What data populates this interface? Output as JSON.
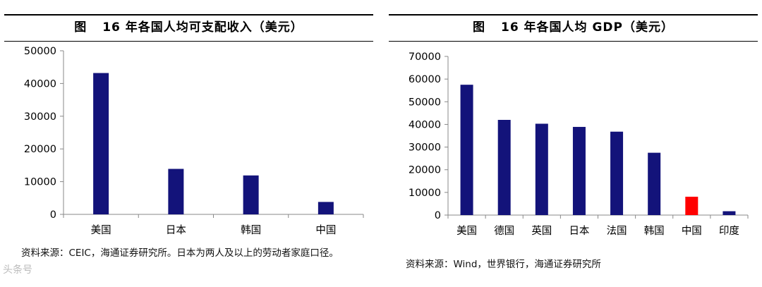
{
  "charts": [
    {
      "figure_label": "图",
      "title": "16 年各国人均可支配收入（美元）",
      "source": "资料来源：CEIC，海通证券研究所。日本为两人及以上的劳动者家庭口径。"
    },
    {
      "figure_label": "图",
      "title": "16 年各国人均 GDP（美元）",
      "source": "资料来源：Wind，世界银行，海通证券研究所"
    }
  ],
  "watermark": "头条号",
  "colors": {
    "bar": "#13137a",
    "highlight": "#ff0000",
    "axis": "#888888"
  },
  "chart_data": [
    {
      "type": "bar",
      "title": "16 年各国人均可支配收入（美元）",
      "categories": [
        "美国",
        "日本",
        "韩国",
        "中国"
      ],
      "values": [
        43200,
        13900,
        11900,
        3800
      ],
      "ylim": [
        0,
        50000
      ],
      "yticks": [
        0,
        10000,
        20000,
        30000,
        40000,
        50000
      ],
      "xlabel": "",
      "ylabel": "",
      "grid": false,
      "legend": "none",
      "highlight_index": -1
    },
    {
      "type": "bar",
      "title": "16 年各国人均 GDP（美元）",
      "categories": [
        "美国",
        "德国",
        "英国",
        "日本",
        "法国",
        "韩国",
        "中国",
        "印度"
      ],
      "values": [
        57500,
        42000,
        40300,
        38900,
        36800,
        27500,
        8100,
        1700
      ],
      "ylim": [
        0,
        70000
      ],
      "yticks": [
        0,
        10000,
        20000,
        30000,
        40000,
        50000,
        60000,
        70000
      ],
      "xlabel": "",
      "ylabel": "",
      "grid": false,
      "legend": "none",
      "highlight_index": 6
    }
  ]
}
